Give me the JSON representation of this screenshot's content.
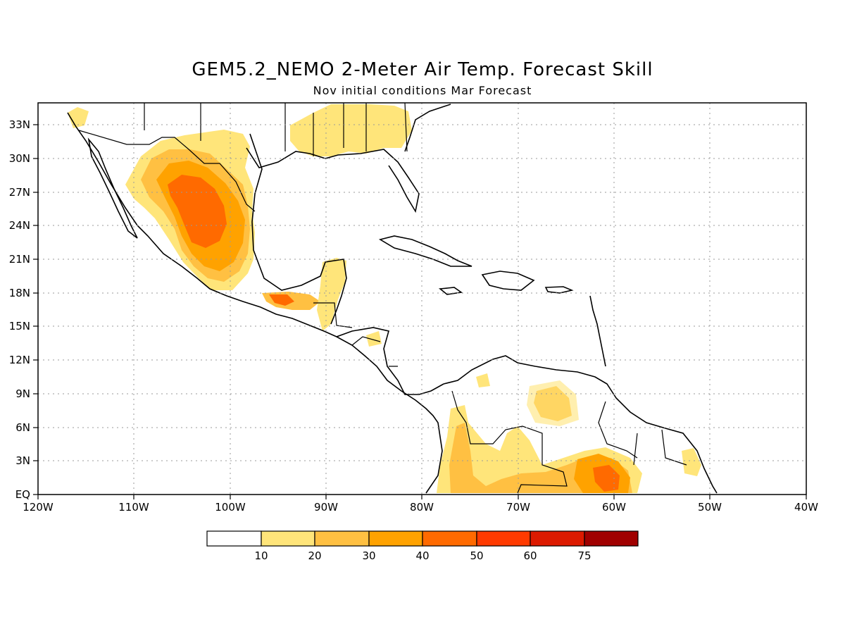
{
  "title": "GEM5.2_NEMO 2-Meter Air Temp. Forecast Skill",
  "subtitle": "Nov initial conditions  Mar Forecast",
  "map": {
    "lon_labels": [
      "120W",
      "110W",
      "100W",
      "90W",
      "80W",
      "70W",
      "60W",
      "50W",
      "40W"
    ],
    "lat_labels": [
      "EQ",
      "3N",
      "6N",
      "9N",
      "12N",
      "15N",
      "18N",
      "21N",
      "24N",
      "27N",
      "30N",
      "33N"
    ],
    "lon_range": [
      -120,
      -40
    ],
    "lat_range": [
      0,
      35
    ],
    "grid": "dotted",
    "coastlines": true,
    "country_borders": true
  },
  "colorbar": {
    "labels": [
      "10",
      "20",
      "30",
      "40",
      "50",
      "60",
      "75"
    ],
    "colors": [
      "#ffffff",
      "#ffe57a",
      "#ffc042",
      "#ffa200",
      "#ff6a00",
      "#ff3a00",
      "#dc1a00",
      "#a00000"
    ]
  }
}
